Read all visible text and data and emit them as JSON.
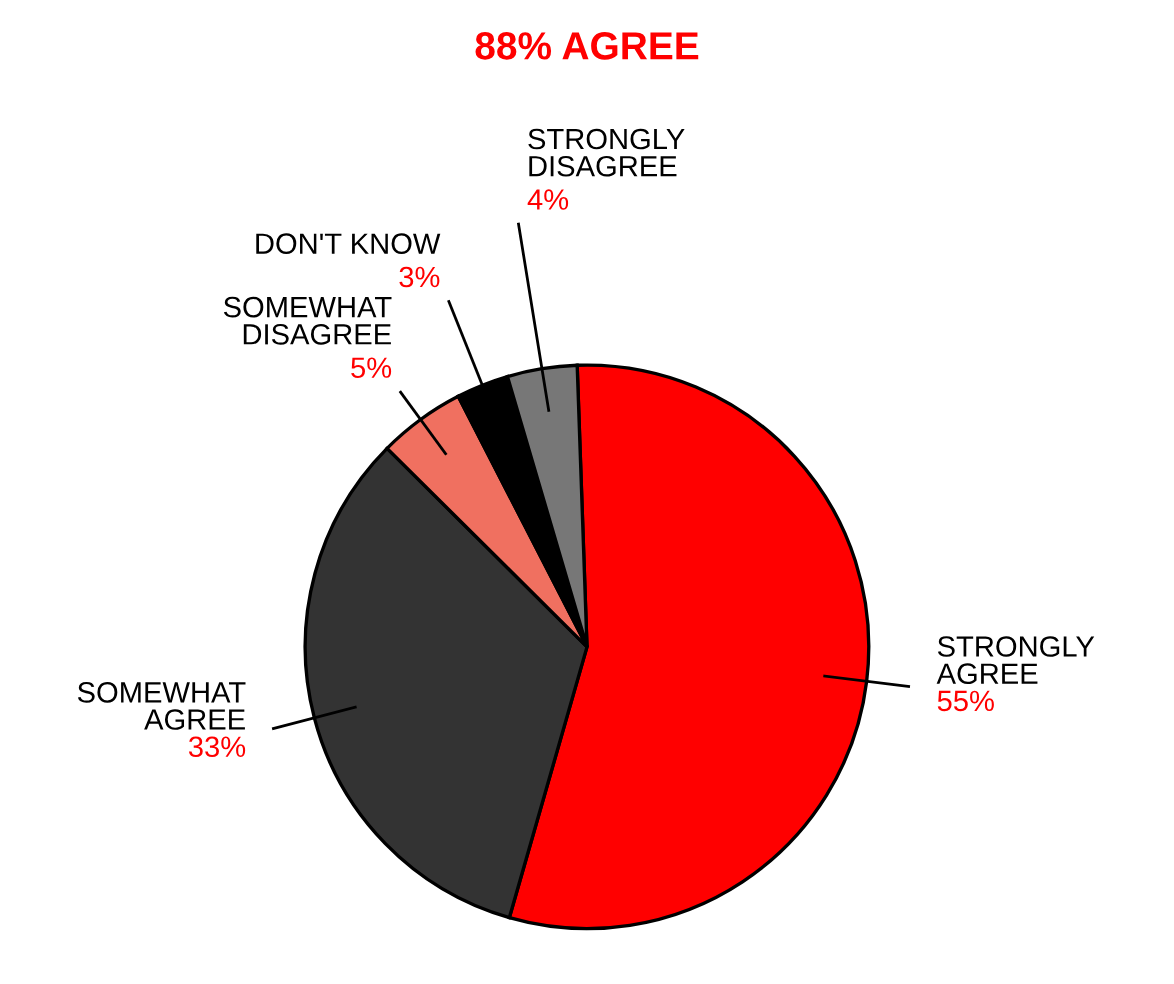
{
  "chart_data": {
    "type": "pie",
    "title": "88% AGREE",
    "categories": [
      "STRONGLY\nAGREE",
      "SOMEWHAT\nAGREE",
      "SOMEWHAT\nDISAGREE",
      "DON'T KNOW",
      "STRONGLY\nDISAGREE"
    ],
    "values": [
      55,
      33,
      5,
      3,
      4
    ],
    "colors": [
      "#ff0000",
      "#333333",
      "#f07060",
      "#000000",
      "#777777"
    ],
    "value_labels": [
      "55%",
      "33%",
      "5%",
      "3%",
      "4%"
    ]
  }
}
